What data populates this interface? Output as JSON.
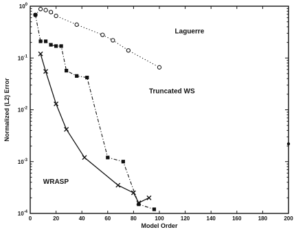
{
  "chart_data": {
    "type": "line",
    "title": "",
    "xlabel": "Model Order",
    "ylabel": "Normalized (L2) Error",
    "xlim": [
      0,
      200
    ],
    "ylim": [
      0.0001,
      1
    ],
    "yscale": "log",
    "grid": false,
    "x_ticks": [
      0,
      20,
      40,
      60,
      80,
      100,
      120,
      140,
      160,
      180,
      200
    ],
    "x_tick_labels": [
      "0",
      "20",
      "40",
      "60",
      "80",
      "100",
      "120",
      "140",
      "160",
      "180",
      "200"
    ],
    "y_ticks": [
      0.0001,
      0.001,
      0.01,
      0.1,
      1
    ],
    "y_tick_labels": [
      "10-4",
      "10-3",
      "10-2",
      "10-1",
      "10^0"
    ],
    "series": [
      {
        "name": "Laguerre",
        "style": "dotted",
        "marker": "circle",
        "color": "#111111",
        "x": [
          4,
          8,
          12,
          16,
          20,
          36,
          56,
          64,
          76,
          100
        ],
        "y": [
          0.68,
          0.88,
          0.84,
          0.77,
          0.65,
          0.44,
          0.28,
          0.22,
          0.14,
          0.066
        ]
      },
      {
        "name": "Truncated WS",
        "style": "dashdot",
        "marker": "square",
        "color": "#111111",
        "x": [
          4,
          8,
          12,
          16,
          20,
          24,
          28,
          36,
          44,
          60,
          72,
          84,
          96
        ],
        "y": [
          0.68,
          0.21,
          0.21,
          0.18,
          0.17,
          0.17,
          0.057,
          0.045,
          0.042,
          0.0012,
          0.001,
          0.00015,
          0.00012
        ]
      },
      {
        "name": "WRASP",
        "style": "solid",
        "marker": "x",
        "color": "#111111",
        "x": [
          8,
          12,
          20,
          28,
          42,
          68,
          80,
          84,
          92
        ],
        "y": [
          0.12,
          0.055,
          0.013,
          0.0042,
          0.0012,
          0.00035,
          0.00025,
          0.00016,
          0.0002
        ]
      },
      {
        "name": "",
        "style": "none",
        "marker": "dot",
        "color": "#111111",
        "x": [
          200
        ],
        "y": [
          0.0022
        ]
      }
    ],
    "annotations": [
      {
        "text": "Laguerre",
        "x": 112,
        "y": 0.3
      },
      {
        "text": "Truncated WS",
        "x": 92,
        "y": 0.021
      },
      {
        "text": "WRASP",
        "x": 10,
        "y": 0.00037
      }
    ]
  }
}
